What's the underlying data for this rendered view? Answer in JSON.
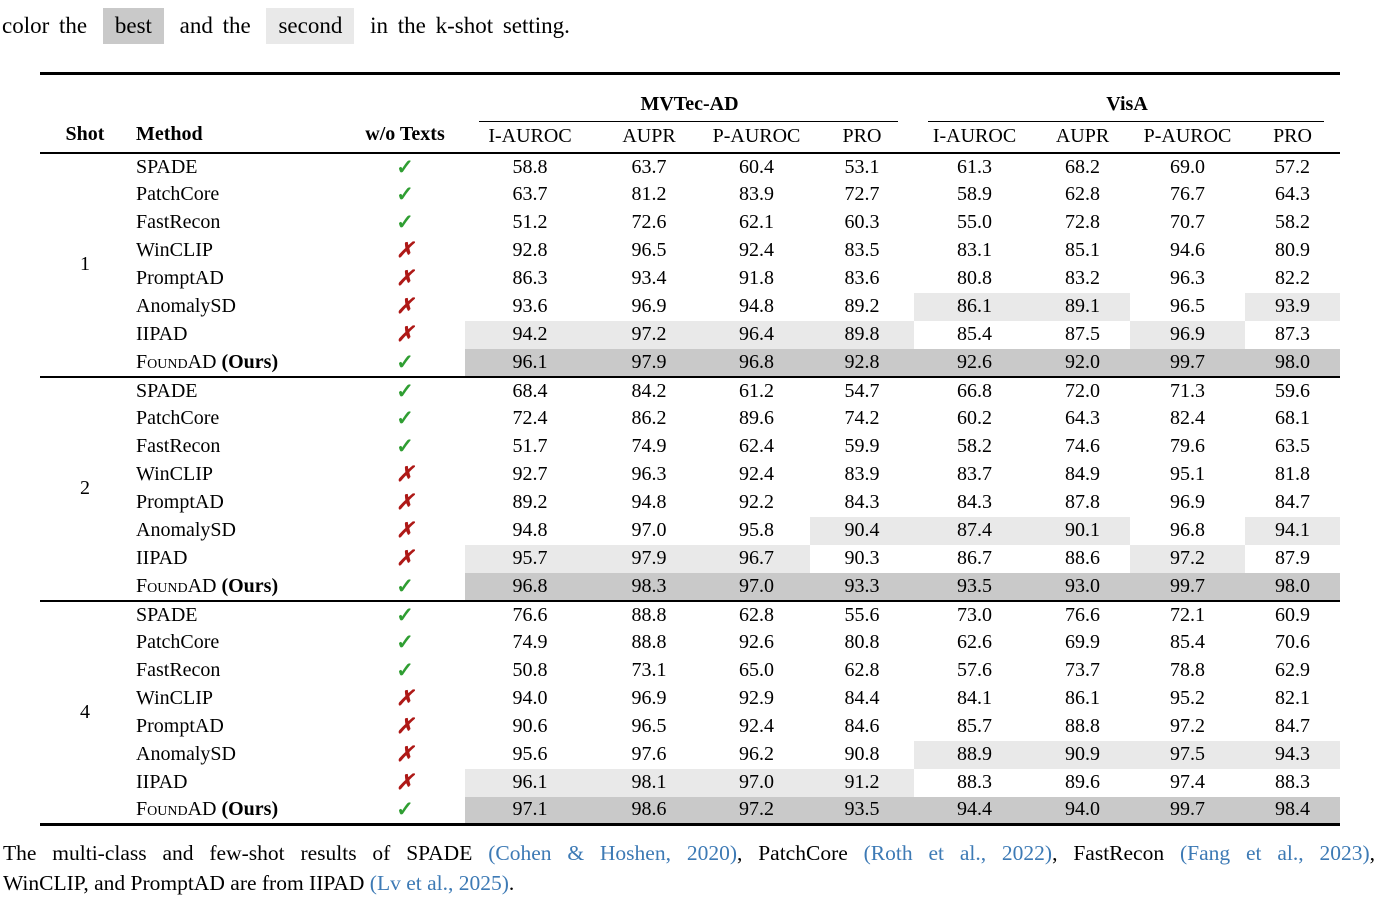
{
  "top_caption": {
    "prefix": "color the",
    "best_label": "best",
    "mid": "and the",
    "second_label": "second",
    "suffix": "in the k-shot setting."
  },
  "colors": {
    "best_bg": "#c9c9c9",
    "second_bg": "#e9e9e9",
    "check_green": "#2f9e32",
    "cross_red": "#ae1917",
    "cite_blue": "#3d7ab5"
  },
  "table": {
    "headers": {
      "shot": "Shot",
      "method": "Method",
      "wo_texts": "w/o Texts",
      "groups": [
        "MVTec-AD",
        "VisA"
      ],
      "metrics": [
        "I-AUROC",
        "AUPR",
        "P-AUROC",
        "PRO"
      ]
    },
    "check_symbol": "✓",
    "cross_symbol": "✗",
    "ours_suffix": "(Ours)",
    "highlight_legend": {
      "0": "none",
      "1": "second",
      "2": "best"
    },
    "groups": [
      {
        "shot": "1",
        "rows": [
          {
            "method": "SPADE",
            "ours": false,
            "check": true,
            "values": [
              "58.8",
              "63.7",
              "60.4",
              "53.1",
              "61.3",
              "68.2",
              "69.0",
              "57.2"
            ],
            "hl": [
              0,
              0,
              0,
              0,
              0,
              0,
              0,
              0
            ]
          },
          {
            "method": "PatchCore",
            "ours": false,
            "check": true,
            "values": [
              "63.7",
              "81.2",
              "83.9",
              "72.7",
              "58.9",
              "62.8",
              "76.7",
              "64.3"
            ],
            "hl": [
              0,
              0,
              0,
              0,
              0,
              0,
              0,
              0
            ]
          },
          {
            "method": "FastRecon",
            "ours": false,
            "check": true,
            "values": [
              "51.2",
              "72.6",
              "62.1",
              "60.3",
              "55.0",
              "72.8",
              "70.7",
              "58.2"
            ],
            "hl": [
              0,
              0,
              0,
              0,
              0,
              0,
              0,
              0
            ]
          },
          {
            "method": "WinCLIP",
            "ours": false,
            "check": false,
            "values": [
              "92.8",
              "96.5",
              "92.4",
              "83.5",
              "83.1",
              "85.1",
              "94.6",
              "80.9"
            ],
            "hl": [
              0,
              0,
              0,
              0,
              0,
              0,
              0,
              0
            ]
          },
          {
            "method": "PromptAD",
            "ours": false,
            "check": false,
            "values": [
              "86.3",
              "93.4",
              "91.8",
              "83.6",
              "80.8",
              "83.2",
              "96.3",
              "82.2"
            ],
            "hl": [
              0,
              0,
              0,
              0,
              0,
              0,
              0,
              0
            ]
          },
          {
            "method": "AnomalySD",
            "ours": false,
            "check": false,
            "values": [
              "93.6",
              "96.9",
              "94.8",
              "89.2",
              "86.1",
              "89.1",
              "96.5",
              "93.9"
            ],
            "hl": [
              0,
              0,
              0,
              0,
              1,
              1,
              0,
              1
            ]
          },
          {
            "method": "IIPAD",
            "ours": false,
            "check": false,
            "values": [
              "94.2",
              "97.2",
              "96.4",
              "89.8",
              "85.4",
              "87.5",
              "96.9",
              "87.3"
            ],
            "hl": [
              1,
              1,
              1,
              1,
              0,
              0,
              1,
              0
            ]
          },
          {
            "method": "FoundAD",
            "ours": true,
            "check": true,
            "values": [
              "96.1",
              "97.9",
              "96.8",
              "92.8",
              "92.6",
              "92.0",
              "99.7",
              "98.0"
            ],
            "hl": [
              2,
              2,
              2,
              2,
              2,
              2,
              2,
              2
            ]
          }
        ]
      },
      {
        "shot": "2",
        "rows": [
          {
            "method": "SPADE",
            "ours": false,
            "check": true,
            "values": [
              "68.4",
              "84.2",
              "61.2",
              "54.7",
              "66.8",
              "72.0",
              "71.3",
              "59.6"
            ],
            "hl": [
              0,
              0,
              0,
              0,
              0,
              0,
              0,
              0
            ]
          },
          {
            "method": "PatchCore",
            "ours": false,
            "check": true,
            "values": [
              "72.4",
              "86.2",
              "89.6",
              "74.2",
              "60.2",
              "64.3",
              "82.4",
              "68.1"
            ],
            "hl": [
              0,
              0,
              0,
              0,
              0,
              0,
              0,
              0
            ]
          },
          {
            "method": "FastRecon",
            "ours": false,
            "check": true,
            "values": [
              "51.7",
              "74.9",
              "62.4",
              "59.9",
              "58.2",
              "74.6",
              "79.6",
              "63.5"
            ],
            "hl": [
              0,
              0,
              0,
              0,
              0,
              0,
              0,
              0
            ]
          },
          {
            "method": "WinCLIP",
            "ours": false,
            "check": false,
            "values": [
              "92.7",
              "96.3",
              "92.4",
              "83.9",
              "83.7",
              "84.9",
              "95.1",
              "81.8"
            ],
            "hl": [
              0,
              0,
              0,
              0,
              0,
              0,
              0,
              0
            ]
          },
          {
            "method": "PromptAD",
            "ours": false,
            "check": false,
            "values": [
              "89.2",
              "94.8",
              "92.2",
              "84.3",
              "84.3",
              "87.8",
              "96.9",
              "84.7"
            ],
            "hl": [
              0,
              0,
              0,
              0,
              0,
              0,
              0,
              0
            ]
          },
          {
            "method": "AnomalySD",
            "ours": false,
            "check": false,
            "values": [
              "94.8",
              "97.0",
              "95.8",
              "90.4",
              "87.4",
              "90.1",
              "96.8",
              "94.1"
            ],
            "hl": [
              0,
              0,
              0,
              1,
              1,
              1,
              0,
              1
            ]
          },
          {
            "method": "IIPAD",
            "ours": false,
            "check": false,
            "values": [
              "95.7",
              "97.9",
              "96.7",
              "90.3",
              "86.7",
              "88.6",
              "97.2",
              "87.9"
            ],
            "hl": [
              1,
              1,
              1,
              0,
              0,
              0,
              1,
              0
            ]
          },
          {
            "method": "FoundAD",
            "ours": true,
            "check": true,
            "values": [
              "96.8",
              "98.3",
              "97.0",
              "93.3",
              "93.5",
              "93.0",
              "99.7",
              "98.0"
            ],
            "hl": [
              2,
              2,
              2,
              2,
              2,
              2,
              2,
              2
            ]
          }
        ]
      },
      {
        "shot": "4",
        "rows": [
          {
            "method": "SPADE",
            "ours": false,
            "check": true,
            "values": [
              "76.6",
              "88.8",
              "62.8",
              "55.6",
              "73.0",
              "76.6",
              "72.1",
              "60.9"
            ],
            "hl": [
              0,
              0,
              0,
              0,
              0,
              0,
              0,
              0
            ]
          },
          {
            "method": "PatchCore",
            "ours": false,
            "check": true,
            "values": [
              "74.9",
              "88.8",
              "92.6",
              "80.8",
              "62.6",
              "69.9",
              "85.4",
              "70.6"
            ],
            "hl": [
              0,
              0,
              0,
              0,
              0,
              0,
              0,
              0
            ]
          },
          {
            "method": "FastRecon",
            "ours": false,
            "check": true,
            "values": [
              "50.8",
              "73.1",
              "65.0",
              "62.8",
              "57.6",
              "73.7",
              "78.8",
              "62.9"
            ],
            "hl": [
              0,
              0,
              0,
              0,
              0,
              0,
              0,
              0
            ]
          },
          {
            "method": "WinCLIP",
            "ours": false,
            "check": false,
            "values": [
              "94.0",
              "96.9",
              "92.9",
              "84.4",
              "84.1",
              "86.1",
              "95.2",
              "82.1"
            ],
            "hl": [
              0,
              0,
              0,
              0,
              0,
              0,
              0,
              0
            ]
          },
          {
            "method": "PromptAD",
            "ours": false,
            "check": false,
            "values": [
              "90.6",
              "96.5",
              "92.4",
              "84.6",
              "85.7",
              "88.8",
              "97.2",
              "84.7"
            ],
            "hl": [
              0,
              0,
              0,
              0,
              0,
              0,
              0,
              0
            ]
          },
          {
            "method": "AnomalySD",
            "ours": false,
            "check": false,
            "values": [
              "95.6",
              "97.6",
              "96.2",
              "90.8",
              "88.9",
              "90.9",
              "97.5",
              "94.3"
            ],
            "hl": [
              0,
              0,
              0,
              0,
              1,
              1,
              1,
              1
            ]
          },
          {
            "method": "IIPAD",
            "ours": false,
            "check": false,
            "values": [
              "96.1",
              "98.1",
              "97.0",
              "91.2",
              "88.3",
              "89.6",
              "97.4",
              "88.3"
            ],
            "hl": [
              1,
              1,
              1,
              1,
              0,
              0,
              0,
              0
            ]
          },
          {
            "method": "FoundAD",
            "ours": true,
            "check": true,
            "values": [
              "97.1",
              "98.6",
              "97.2",
              "93.5",
              "94.4",
              "94.0",
              "99.7",
              "98.4"
            ],
            "hl": [
              2,
              2,
              2,
              2,
              2,
              2,
              2,
              2
            ]
          }
        ]
      }
    ]
  },
  "bottom_caption": {
    "lines": [
      [
        {
          "t": "The multi-class and few-shot results of SPADE "
        },
        {
          "t": "(Cohen & Hoshen, 2020)",
          "cite": true
        },
        {
          "t": ", PatchCore "
        },
        {
          "t": "(Roth et al., 2022)",
          "cite": true
        },
        {
          "t": ", FastRecon "
        },
        {
          "t": "(Fang et al., 2023)",
          "cite": true
        },
        {
          "t": ","
        }
      ],
      [
        {
          "t": "WinCLIP, and PromptAD are from IIPAD "
        },
        {
          "t": "(Lv et al., 2025)",
          "cite": true
        },
        {
          "t": "."
        }
      ]
    ]
  }
}
